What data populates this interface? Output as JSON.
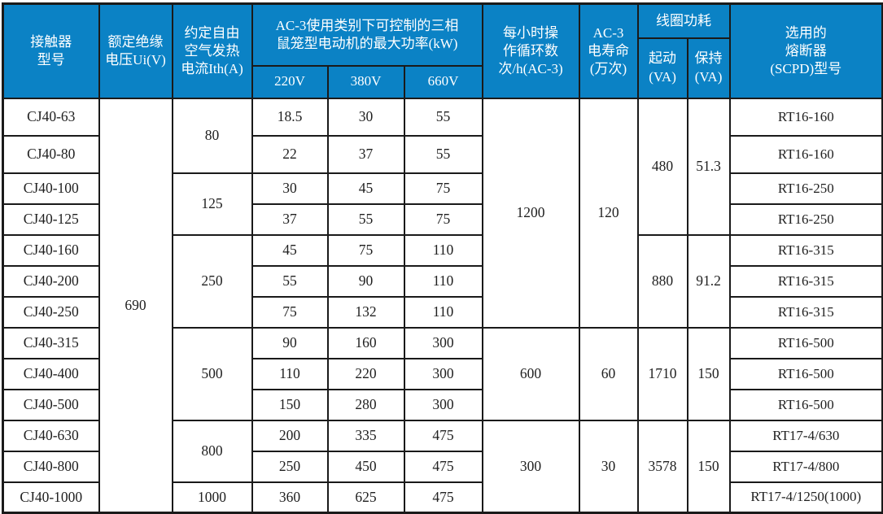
{
  "table": {
    "title_semantic": "CJ40 contactor specification table",
    "colors": {
      "header_bg": "#0b82c5",
      "header_text": "#ffffff",
      "border": "#1a1a1a",
      "cell_text": "#1f1f1f",
      "cell_bg": "#ffffff"
    },
    "header": {
      "model": "接触器\n型号",
      "ui": "额定绝缘\n电压Ui(V)",
      "ith": "约定自由\n空气发热\n电流Ith(A)",
      "power_group": "AC-3使用类别下可控制的三相\n鼠笼型电动机的最大功率(kW)",
      "v220": "220V",
      "v380": "380V",
      "v660": "660V",
      "cycles": "每小时操\n作循环数\n次/h(AC-3)",
      "life": "AC-3\n电寿命\n(万次)",
      "coil_group": "线圈功耗",
      "coil_start": "起动\n(VA)",
      "coil_hold": "保持\n(VA)",
      "fuse": "选用的\n熔断器\n(SCPD)型号"
    },
    "rows": [
      {
        "group_end": false,
        "cells": [
          [
            "CJ40-63",
            1,
            "model"
          ],
          [
            "690",
            13,
            "ui"
          ],
          [
            "80",
            2,
            "ith"
          ],
          [
            "18.5",
            1,
            "p220"
          ],
          [
            "30",
            1,
            "p380"
          ],
          [
            "55",
            1,
            "p660"
          ],
          [
            "1200",
            7,
            "cycles"
          ],
          [
            "120",
            7,
            "life"
          ],
          [
            "480",
            4,
            "coil-start"
          ],
          [
            "51.3",
            4,
            "coil-hold"
          ],
          [
            "RT16-160",
            1,
            "fuse"
          ]
        ]
      },
      {
        "group_end": true,
        "cells": [
          [
            "CJ40-80",
            1,
            "model"
          ],
          [
            "22",
            1,
            "p220"
          ],
          [
            "37",
            1,
            "p380"
          ],
          [
            "55",
            1,
            "p660"
          ],
          [
            "RT16-160",
            1,
            "fuse"
          ]
        ]
      },
      {
        "group_end": false,
        "cells": [
          [
            "CJ40-100",
            1,
            "model"
          ],
          [
            "125",
            2,
            "ith"
          ],
          [
            "30",
            1,
            "p220"
          ],
          [
            "45",
            1,
            "p380"
          ],
          [
            "75",
            1,
            "p660"
          ],
          [
            "RT16-250",
            1,
            "fuse"
          ]
        ]
      },
      {
        "group_end": true,
        "cells": [
          [
            "CJ40-125",
            1,
            "model"
          ],
          [
            "37",
            1,
            "p220"
          ],
          [
            "55",
            1,
            "p380"
          ],
          [
            "75",
            1,
            "p660"
          ],
          [
            "RT16-250",
            1,
            "fuse"
          ]
        ]
      },
      {
        "group_end": false,
        "cells": [
          [
            "CJ40-160",
            1,
            "model"
          ],
          [
            "250",
            3,
            "ith"
          ],
          [
            "45",
            1,
            "p220"
          ],
          [
            "75",
            1,
            "p380"
          ],
          [
            "110",
            1,
            "p660"
          ],
          [
            "880",
            3,
            "coil-start"
          ],
          [
            "91.2",
            3,
            "coil-hold"
          ],
          [
            "RT16-315",
            1,
            "fuse"
          ]
        ]
      },
      {
        "group_end": false,
        "cells": [
          [
            "CJ40-200",
            1,
            "model"
          ],
          [
            "55",
            1,
            "p220"
          ],
          [
            "90",
            1,
            "p380"
          ],
          [
            "110",
            1,
            "p660"
          ],
          [
            "RT16-315",
            1,
            "fuse"
          ]
        ]
      },
      {
        "group_end": true,
        "cells": [
          [
            "CJ40-250",
            1,
            "model"
          ],
          [
            "75",
            1,
            "p220"
          ],
          [
            "132",
            1,
            "p380"
          ],
          [
            "110",
            1,
            "p660"
          ],
          [
            "RT16-315",
            1,
            "fuse"
          ]
        ]
      },
      {
        "group_end": false,
        "cells": [
          [
            "CJ40-315",
            1,
            "model"
          ],
          [
            "500",
            3,
            "ith"
          ],
          [
            "90",
            1,
            "p220"
          ],
          [
            "160",
            1,
            "p380"
          ],
          [
            "300",
            1,
            "p660"
          ],
          [
            "600",
            3,
            "cycles"
          ],
          [
            "60",
            3,
            "life"
          ],
          [
            "1710",
            3,
            "coil-start"
          ],
          [
            "150",
            3,
            "coil-hold"
          ],
          [
            "RT16-500",
            1,
            "fuse"
          ]
        ]
      },
      {
        "group_end": false,
        "cells": [
          [
            "CJ40-400",
            1,
            "model"
          ],
          [
            "110",
            1,
            "p220"
          ],
          [
            "220",
            1,
            "p380"
          ],
          [
            "300",
            1,
            "p660"
          ],
          [
            "RT16-500",
            1,
            "fuse"
          ]
        ]
      },
      {
        "group_end": true,
        "cells": [
          [
            "CJ40-500",
            1,
            "model"
          ],
          [
            "150",
            1,
            "p220"
          ],
          [
            "280",
            1,
            "p380"
          ],
          [
            "300",
            1,
            "p660"
          ],
          [
            "RT16-500",
            1,
            "fuse"
          ]
        ]
      },
      {
        "group_end": false,
        "cells": [
          [
            "CJ40-630",
            1,
            "model"
          ],
          [
            "800",
            2,
            "ith"
          ],
          [
            "200",
            1,
            "p220"
          ],
          [
            "335",
            1,
            "p380"
          ],
          [
            "475",
            1,
            "p660"
          ],
          [
            "300",
            3,
            "cycles"
          ],
          [
            "30",
            3,
            "life"
          ],
          [
            "3578",
            3,
            "coil-start"
          ],
          [
            "150",
            3,
            "coil-hold"
          ],
          [
            "RT17-4/630",
            1,
            "fuse"
          ]
        ]
      },
      {
        "group_end": true,
        "cells": [
          [
            "CJ40-800",
            1,
            "model"
          ],
          [
            "250",
            1,
            "p220"
          ],
          [
            "450",
            1,
            "p380"
          ],
          [
            "475",
            1,
            "p660"
          ],
          [
            "RT17-4/800",
            1,
            "fuse"
          ]
        ]
      },
      {
        "group_end": false,
        "cells": [
          [
            "CJ40-1000",
            1,
            "model"
          ],
          [
            "1000",
            1,
            "ith"
          ],
          [
            "360",
            1,
            "p220"
          ],
          [
            "625",
            1,
            "p380"
          ],
          [
            "475",
            1,
            "p660"
          ],
          [
            "RT17-4/1250(1000)",
            1,
            "fuse"
          ]
        ]
      }
    ]
  }
}
